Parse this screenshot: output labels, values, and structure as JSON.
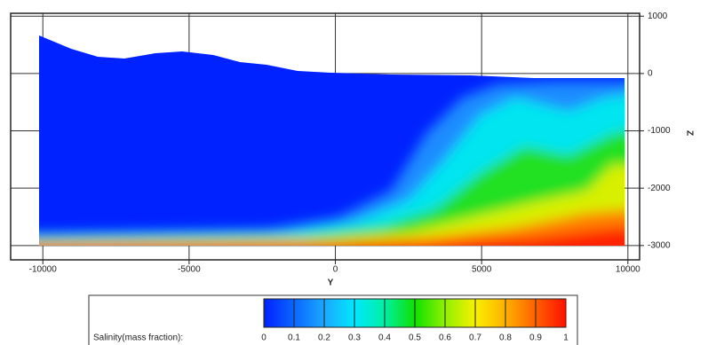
{
  "chart_data": {
    "type": "contour",
    "x_label": "Y",
    "y_label": "Z",
    "xlim": [
      -11100,
      10400
    ],
    "xticks": [
      -10000,
      -5000,
      0,
      5000,
      10000
    ],
    "ylim": [
      -3250,
      1050
    ],
    "yticks": [
      1000,
      0,
      -1000,
      -2000,
      -3000
    ],
    "grid": true,
    "colorbar": {
      "label": "Salinity(mass fraction):",
      "ticks": [
        0,
        0.1,
        0.2,
        0.3,
        0.4,
        0.5,
        0.6,
        0.7,
        0.8,
        0.9,
        1
      ],
      "colors": [
        "#0022ff",
        "#0a66ff",
        "#1aa8ff",
        "#00e8ff",
        "#00f0a0",
        "#10e000",
        "#90f000",
        "#f8f000",
        "#ffb000",
        "#ff6000",
        "#ff1000"
      ]
    }
  }
}
